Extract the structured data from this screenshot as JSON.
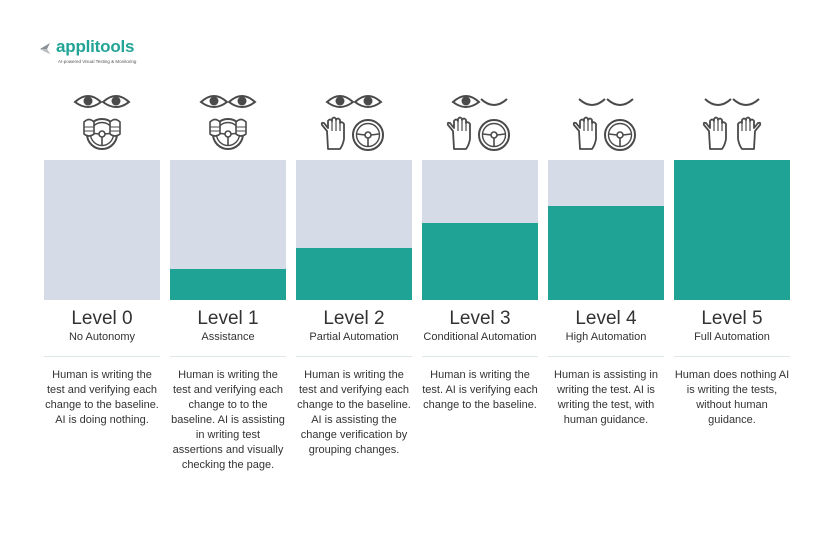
{
  "logo": {
    "name": "applitools",
    "tagline": "AI-powered Visual Testing & Monitoring",
    "brand_color": "#22a496"
  },
  "colors": {
    "bar_background": "#d5dce7",
    "bar_fill": "#1fa394",
    "icon_stroke": "#4a4a4a"
  },
  "levels": [
    {
      "title": "Level 0",
      "subtitle": "No Autonomy",
      "description": "Human is writing the test and verifying each change to the baseline. AI is doing nothing.",
      "automation_fraction": 0.0,
      "icons": [
        "open-eye-icon",
        "open-eye-icon",
        "hands-on-wheel-icon"
      ]
    },
    {
      "title": "Level 1",
      "subtitle": "Assistance",
      "description": "Human is writing the test and verifying each change to to the baseline. AI is assisting in writing test assertions and visually checking the page.",
      "automation_fraction": 0.22,
      "icons": [
        "open-eye-icon",
        "open-eye-icon",
        "hands-on-wheel-icon"
      ]
    },
    {
      "title": "Level 2",
      "subtitle": "Partial Automation",
      "description": "Human is writing the test and verifying each change to the baseline. AI is assisting the change verification by grouping changes.",
      "automation_fraction": 0.37,
      "icons": [
        "open-eye-icon",
        "open-eye-icon",
        "raised-hand-icon",
        "steering-wheel-icon"
      ]
    },
    {
      "title": "Level 3",
      "subtitle": "Conditional Automation",
      "description": "Human is writing the test. AI is verifying each change to the baseline.",
      "automation_fraction": 0.55,
      "icons": [
        "open-eye-icon",
        "closed-eye-icon",
        "raised-hand-icon",
        "steering-wheel-icon"
      ]
    },
    {
      "title": "Level 4",
      "subtitle": "High Automation",
      "description": "Human is assisting in writing the test. AI is writing the test, with human guidance.",
      "automation_fraction": 0.67,
      "icons": [
        "closed-eye-icon",
        "closed-eye-icon",
        "raised-hand-icon",
        "steering-wheel-icon"
      ]
    },
    {
      "title": "Level 5",
      "subtitle": "Full Automation",
      "description": "Human does nothing AI is writing the tests, without human guidance.",
      "automation_fraction": 1.0,
      "icons": [
        "closed-eye-icon",
        "closed-eye-icon",
        "raised-hand-icon",
        "raised-hand-icon"
      ]
    }
  ]
}
